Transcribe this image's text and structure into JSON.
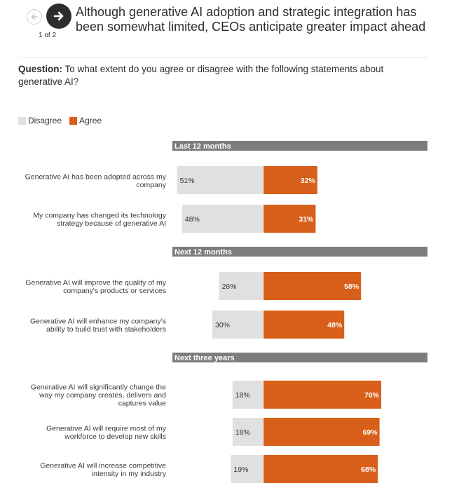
{
  "nav": {
    "pager_label": "1 of 2",
    "prev_icon": "arrow-left-icon",
    "next_icon": "arrow-right-icon"
  },
  "title": "Although generative AI adoption and strategic integration has been somewhat limited, CEOs anticipate greater impact ahead",
  "question": {
    "label": "Question:",
    "text": "To what extent do you agree or disagree with the following statements about generative AI?"
  },
  "colors": {
    "disagree": "#e0e0e0",
    "agree": "#d85f1a",
    "section_header": "#7d7d7d"
  },
  "chart_data": {
    "type": "bar",
    "orientation": "horizontal-diverging",
    "legend": [
      "Disagree",
      "Agree"
    ],
    "sections": [
      {
        "title": "Last 12 months",
        "rows": [
          {
            "label": [
              "Generative AI has been adopted across my",
              "company"
            ],
            "disagree": 51,
            "agree": 32
          },
          {
            "label": [
              "My company has changed its technology",
              "strategy because of generative AI"
            ],
            "disagree": 48,
            "agree": 31
          }
        ]
      },
      {
        "title": "Next 12 months",
        "rows": [
          {
            "label": [
              "Generative AI will improve the quality of my",
              "company's products or services"
            ],
            "disagree": 26,
            "agree": 58
          },
          {
            "label": [
              "Generative AI will enhance my company's",
              "ability to build trust with stakeholders"
            ],
            "disagree": 30,
            "agree": 48
          }
        ]
      },
      {
        "title": "Next three years",
        "rows": [
          {
            "label": [
              "Generative AI will significantly change the",
              "way my company creates, delivers and",
              "captures value"
            ],
            "disagree": 18,
            "agree": 70
          },
          {
            "label": [
              "Generative AI will require most of my",
              "workforce to develop new skills"
            ],
            "disagree": 18,
            "agree": 69
          },
          {
            "label": [
              "Generative AI will increase competitive",
              "intensity in my industry"
            ],
            "disagree": 19,
            "agree": 68
          }
        ]
      }
    ]
  }
}
